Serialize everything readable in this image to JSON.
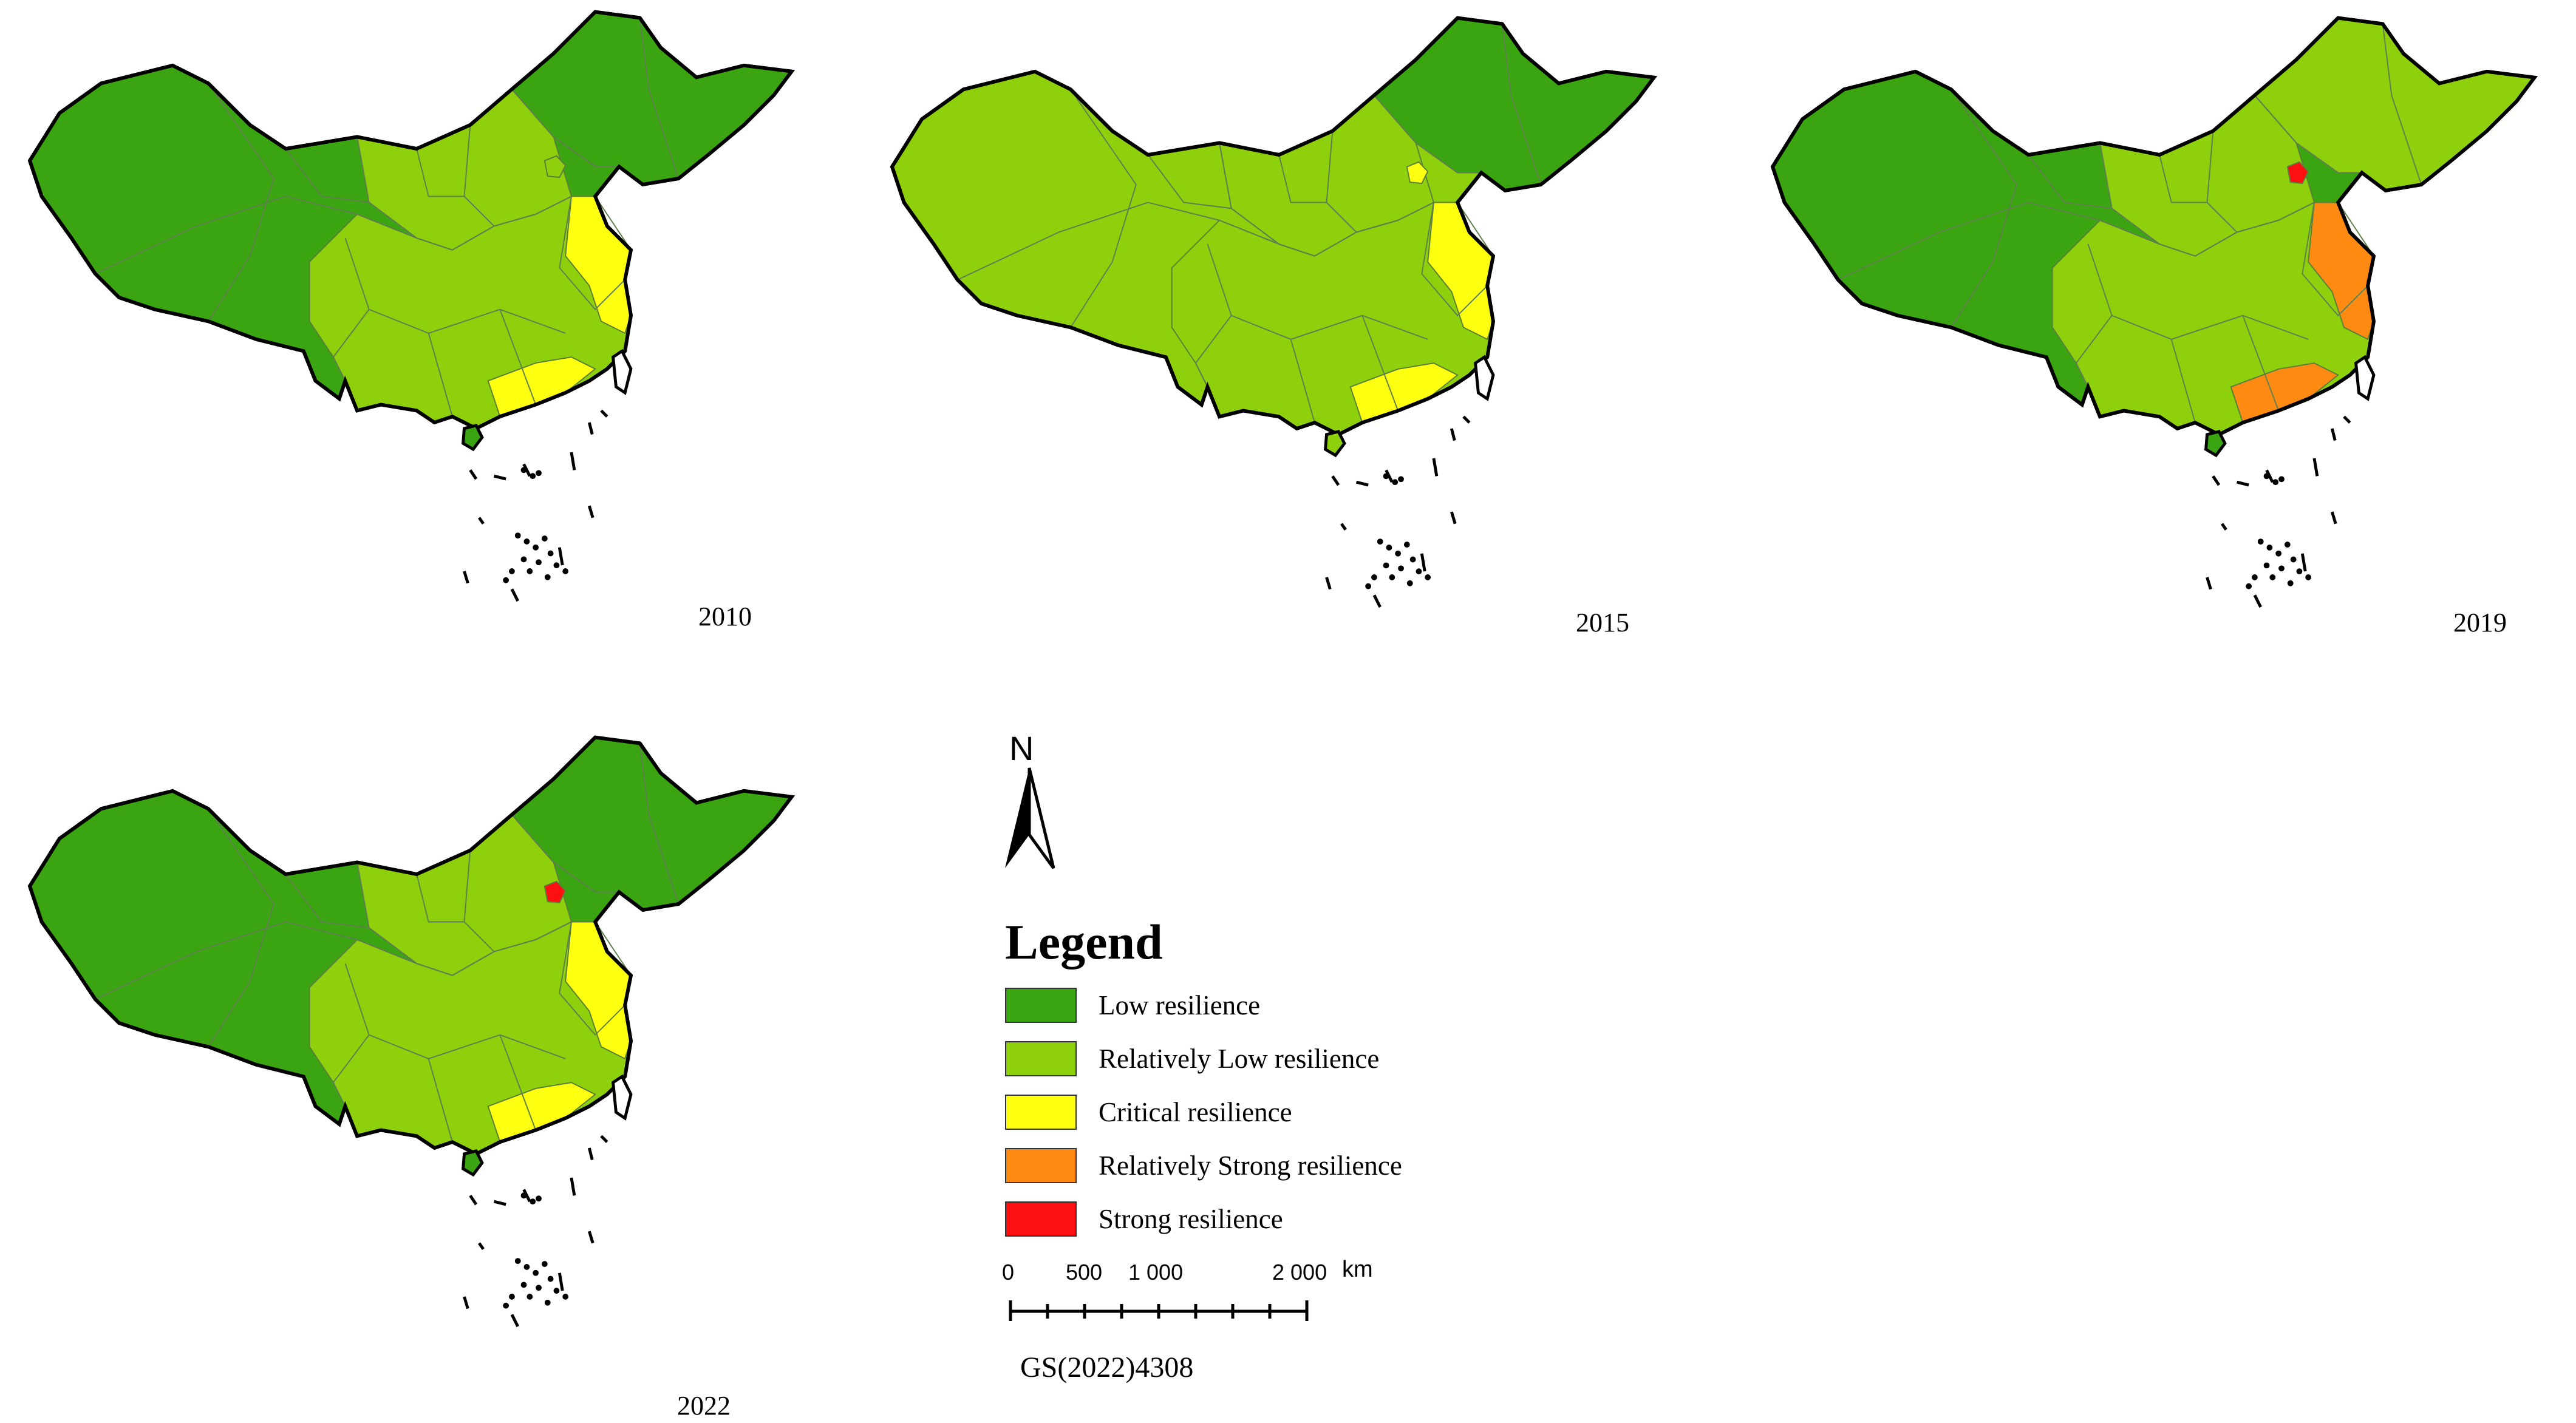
{
  "maps": [
    {
      "year": "2010",
      "class_colors": {
        "west": "low",
        "northeast": "low",
        "central": "relatively_low",
        "east_coast": "critical",
        "south_coast": "critical",
        "capital": "relatively_low"
      }
    },
    {
      "year": "2015",
      "class_colors": {
        "west": "relatively_low",
        "northeast": "low",
        "central": "relatively_low",
        "east_coast": "critical",
        "south_coast": "critical",
        "capital": "critical"
      }
    },
    {
      "year": "2019",
      "class_colors": {
        "west": "low",
        "northeast": "relatively_low",
        "central": "relatively_low",
        "east_coast": "relatively_strong",
        "south_coast": "relatively_strong",
        "capital": "strong"
      }
    },
    {
      "year": "2022",
      "class_colors": {
        "west": "low",
        "northeast": "low",
        "central": "relatively_low",
        "east_coast": "critical",
        "south_coast": "critical",
        "capital": "strong"
      }
    }
  ],
  "north_arrow": {
    "letter": "N",
    "icon": "north-arrow-icon"
  },
  "legend": {
    "title": "Legend",
    "items": [
      {
        "key": "low",
        "label": "Low resilience",
        "color": "#3aa510"
      },
      {
        "key": "relatively_low",
        "label": "Relatively Low resilience",
        "color": "#8fd00c"
      },
      {
        "key": "critical",
        "label": "Critical resilience",
        "color": "#ffff10"
      },
      {
        "key": "relatively_strong",
        "label": "Relatively Strong resilience",
        "color": "#ff8a12"
      },
      {
        "key": "strong",
        "label": "Strong resilience",
        "color": "#ff1010"
      }
    ]
  },
  "scale_bar": {
    "ticks": [
      "0",
      "500",
      "1 000",
      "2 000"
    ],
    "unit": "km"
  },
  "approval_number": "GS(2022)4308"
}
